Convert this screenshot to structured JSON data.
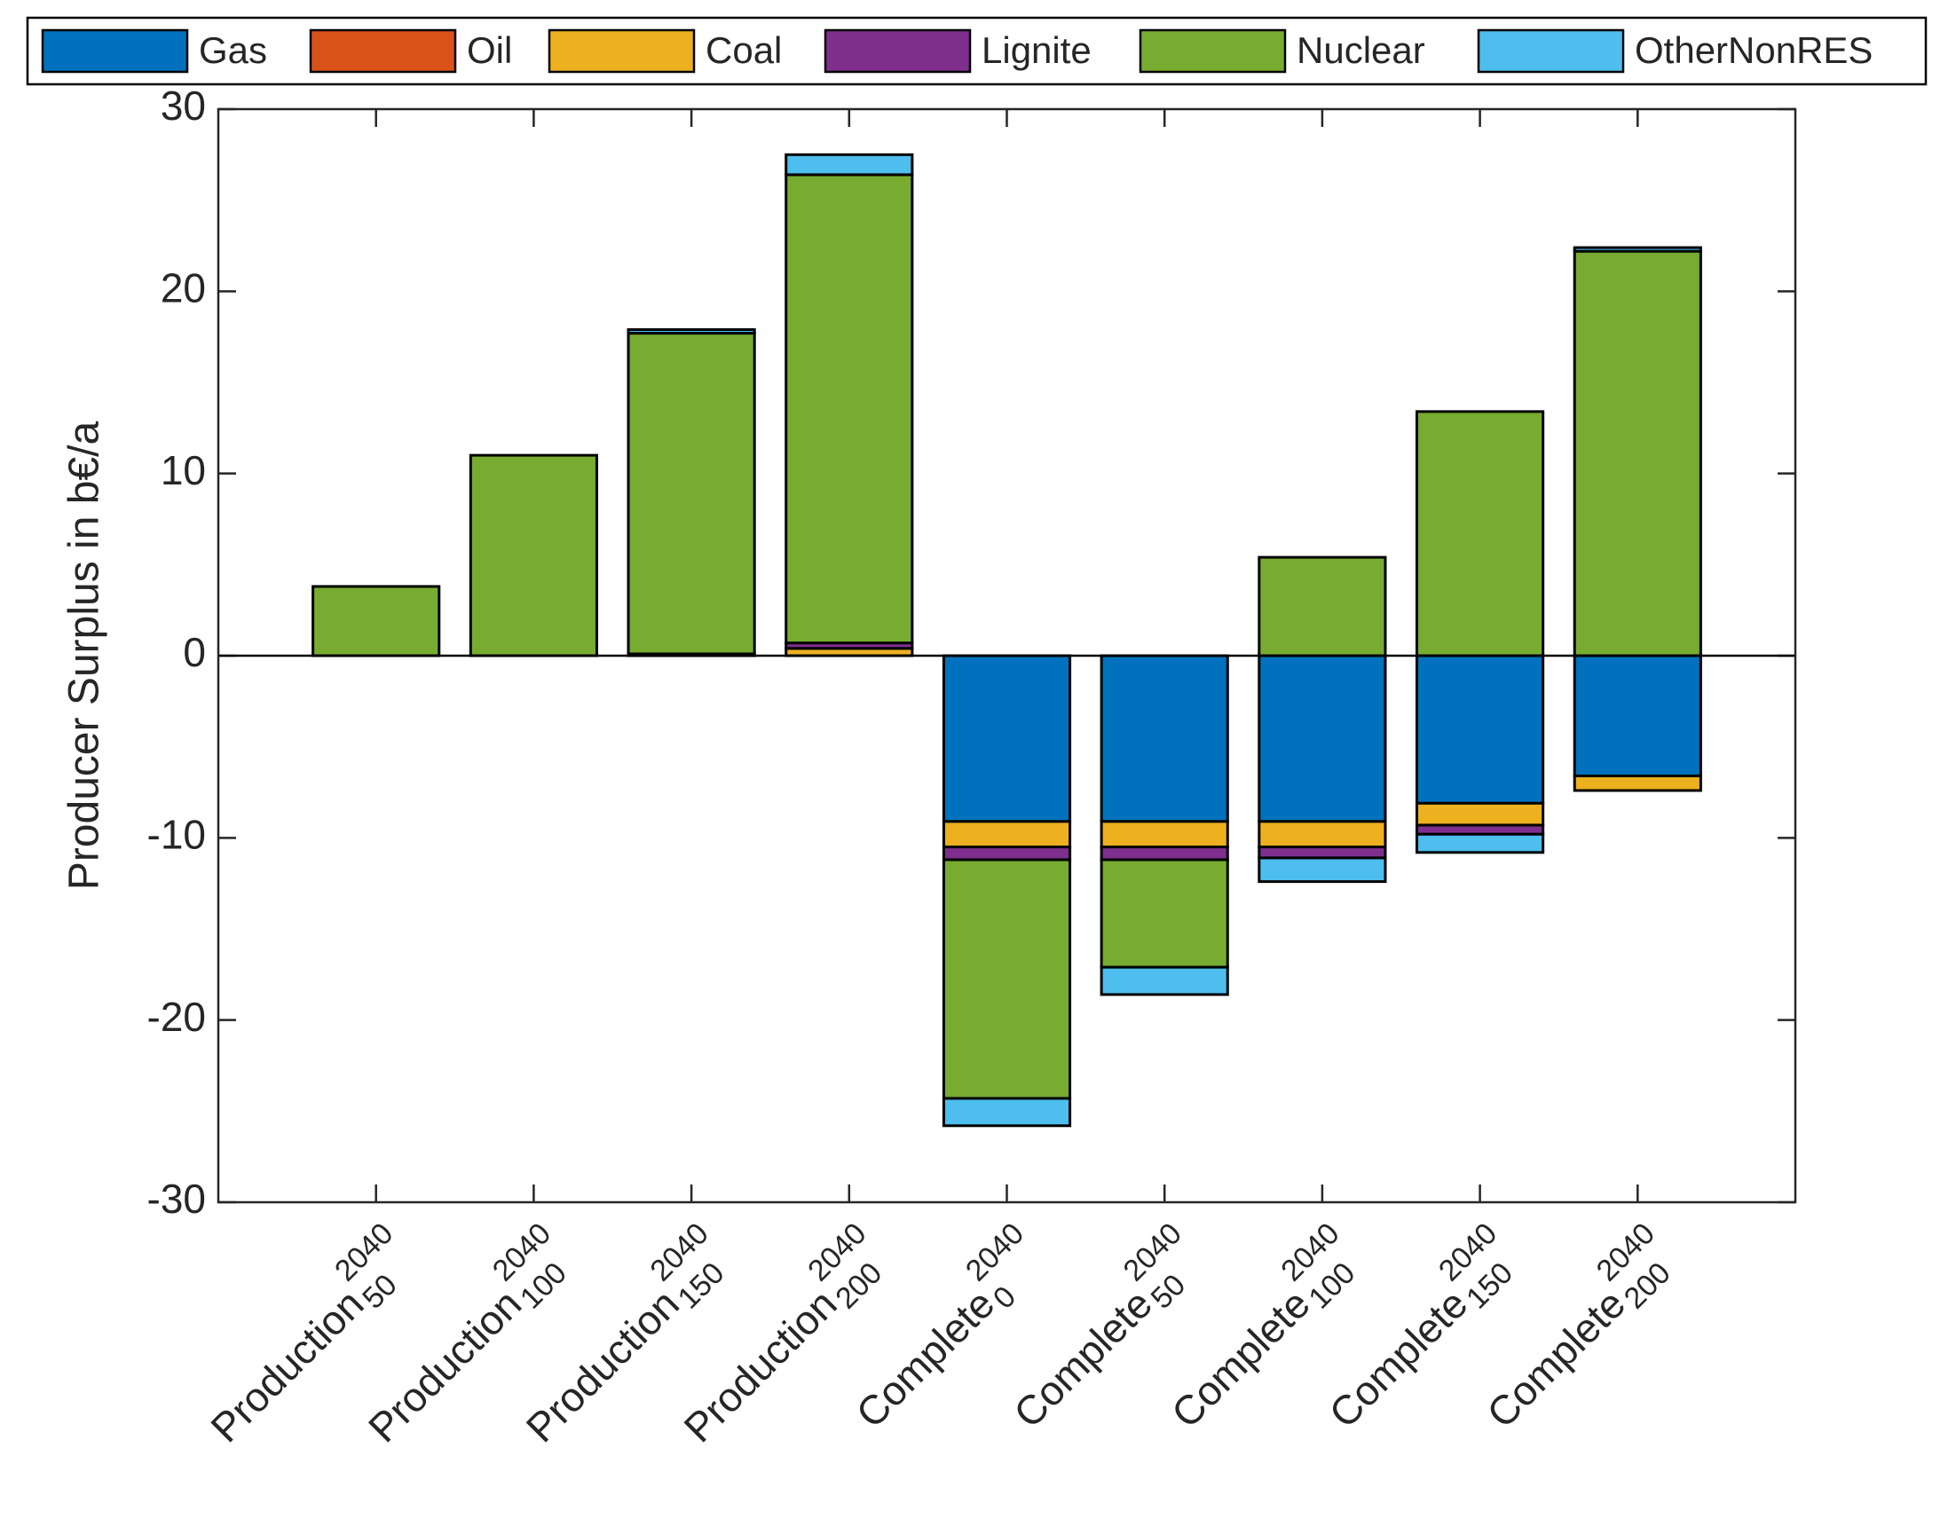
{
  "chart_data": {
    "type": "stacked_bar",
    "ylabel": "Producer Surplus in b€/a",
    "categories": [
      "Production",
      "Production",
      "Production",
      "Production",
      "Complete",
      "Complete",
      "Complete",
      "Complete",
      "Complete"
    ],
    "category_superscripts": [
      "2040",
      "2040",
      "2040",
      "2040",
      "2040",
      "2040",
      "2040",
      "2040",
      "2040"
    ],
    "category_subscripts": [
      "50",
      "100",
      "150",
      "200",
      "0",
      "50",
      "100",
      "150",
      "200"
    ],
    "series": [
      {
        "name": "Gas",
        "color": "#0072BD",
        "values": [
          0,
          0,
          0,
          0,
          -9.1,
          -9.1,
          -9.1,
          -8.1,
          -6.6
        ]
      },
      {
        "name": "Oil",
        "color": "#D95319",
        "values": [
          0,
          0,
          0,
          0,
          0,
          0,
          0,
          0,
          0
        ]
      },
      {
        "name": "Coal",
        "color": "#EDB120",
        "values": [
          0,
          0,
          0.1,
          0.4,
          -1.4,
          -1.4,
          -1.4,
          -1.2,
          -0.8
        ]
      },
      {
        "name": "Lignite",
        "color": "#7E2F8E",
        "values": [
          0,
          0,
          0,
          0.3,
          -0.7,
          -0.7,
          -0.6,
          -0.5,
          0
        ]
      },
      {
        "name": "Nuclear",
        "color": "#77AC30",
        "values": [
          3.8,
          11.0,
          17.6,
          25.7,
          -13.1,
          -5.9,
          5.4,
          13.4,
          22.2
        ]
      },
      {
        "name": "OtherNonRES",
        "color": "#4DBEEE",
        "values": [
          0,
          0,
          0.2,
          1.1,
          -1.5,
          -1.5,
          -1.3,
          -1.0,
          0.2
        ]
      }
    ],
    "ylim": [
      -30,
      30
    ],
    "yticks": [
      -30,
      -20,
      -10,
      0,
      10,
      20,
      30
    ],
    "legend": "top"
  }
}
